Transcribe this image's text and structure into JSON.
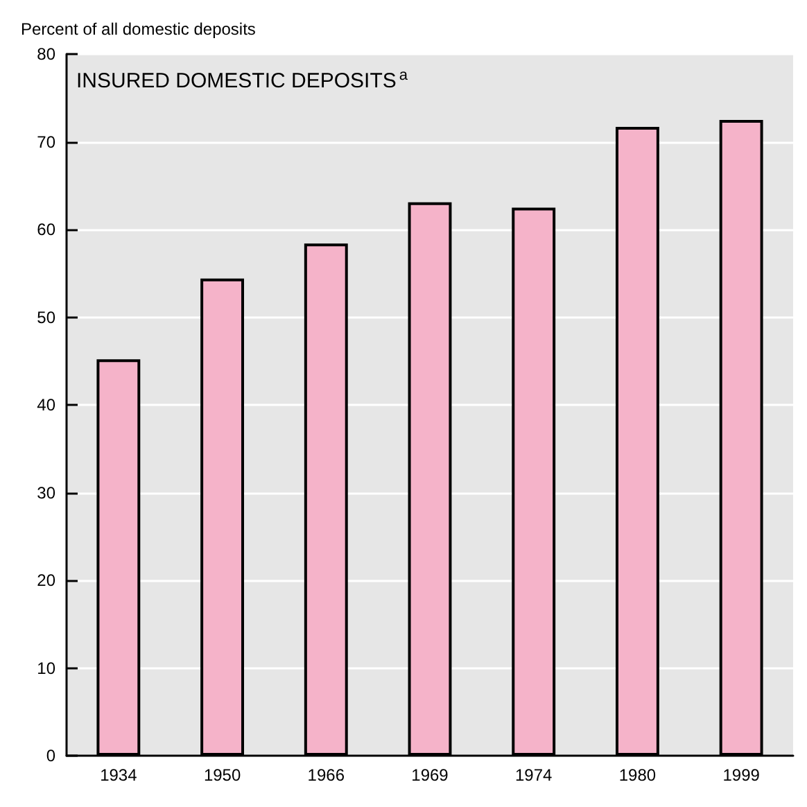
{
  "chart_data": {
    "type": "bar",
    "title": "INSURED DOMESTIC DEPOSITS$^{a}$",
    "ylabel": "Percent of all domestic deposits",
    "categories": [
      "1934",
      "1950",
      "1966",
      "1969",
      "1974",
      "1980",
      "1999"
    ],
    "values": [
      45.2,
      54.4,
      58.4,
      63.1,
      62.5,
      71.7,
      72.5
    ],
    "color": "#f5b3c9",
    "ylim": [
      0,
      80
    ],
    "yticks": [
      0,
      10,
      20,
      30,
      40,
      50,
      60,
      70,
      80
    ],
    "grid": "y"
  }
}
